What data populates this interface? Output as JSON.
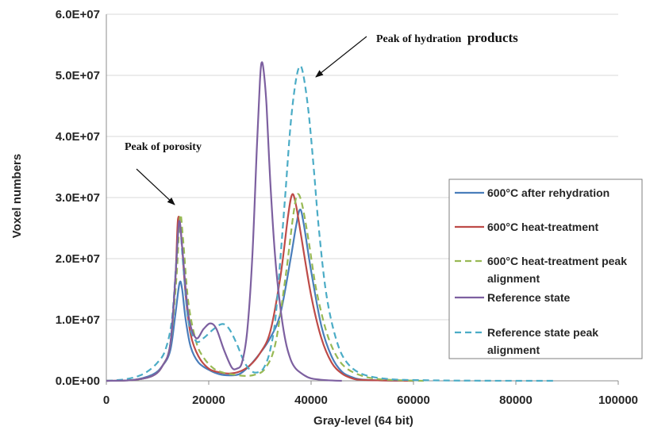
{
  "chart_data": {
    "type": "line",
    "title": "",
    "xlabel": "Gray-level (64 bit)",
    "ylabel": "Voxel numbers",
    "xlim": [
      0,
      100000
    ],
    "ylim": [
      0,
      60000000
    ],
    "x_ticks": [
      0,
      20000,
      40000,
      60000,
      80000,
      100000
    ],
    "x_tick_labels": [
      "0",
      "20000",
      "40000",
      "60000",
      "80000",
      "100000"
    ],
    "y_ticks": [
      0,
      10000000,
      20000000,
      30000000,
      40000000,
      50000000,
      60000000
    ],
    "y_tick_labels": [
      "0.0E+00",
      "1.0E+07",
      "2.0E+07",
      "3.0E+07",
      "4.0E+07",
      "5.0E+07",
      "6.0E+07"
    ],
    "grid": "horizontal",
    "legend_position": "right",
    "series": [
      {
        "name": "600°C after rehydration",
        "color": "#4a7ebb",
        "dash": "solid",
        "points": [
          [
            0,
            0
          ],
          [
            5000,
            100000
          ],
          [
            9000,
            1000000
          ],
          [
            11000,
            2500000
          ],
          [
            12500,
            5000000
          ],
          [
            13500,
            11000000
          ],
          [
            14300,
            16000000
          ],
          [
            14800,
            15000000
          ],
          [
            15500,
            10000000
          ],
          [
            16500,
            5500000
          ],
          [
            18000,
            3000000
          ],
          [
            20000,
            1800000
          ],
          [
            22000,
            1100000
          ],
          [
            24000,
            900000
          ],
          [
            26000,
            1100000
          ],
          [
            28000,
            2500000
          ],
          [
            30000,
            4500000
          ],
          [
            32000,
            7000000
          ],
          [
            34000,
            11000000
          ],
          [
            36000,
            20000000
          ],
          [
            37000,
            25000000
          ],
          [
            37800,
            28000000
          ],
          [
            38500,
            26000000
          ],
          [
            40000,
            18000000
          ],
          [
            42000,
            9000000
          ],
          [
            44000,
            4000000
          ],
          [
            46000,
            1500000
          ],
          [
            48000,
            600000
          ],
          [
            50000,
            200000
          ],
          [
            55000,
            50000
          ],
          [
            60000,
            0
          ]
        ]
      },
      {
        "name": "600°C heat-treatment",
        "color": "#be4b48",
        "dash": "solid",
        "points": [
          [
            0,
            0
          ],
          [
            5000,
            100000
          ],
          [
            9000,
            800000
          ],
          [
            11000,
            2500000
          ],
          [
            12500,
            6000000
          ],
          [
            13500,
            17000000
          ],
          [
            14000,
            26500000
          ],
          [
            14600,
            24000000
          ],
          [
            15500,
            14000000
          ],
          [
            16500,
            7500000
          ],
          [
            18000,
            4000000
          ],
          [
            20000,
            2000000
          ],
          [
            22000,
            1400000
          ],
          [
            24000,
            1200000
          ],
          [
            26000,
            1500000
          ],
          [
            28000,
            2500000
          ],
          [
            30000,
            4500000
          ],
          [
            32000,
            8000000
          ],
          [
            34000,
            17000000
          ],
          [
            35500,
            27000000
          ],
          [
            36300,
            30500000
          ],
          [
            37000,
            29000000
          ],
          [
            38000,
            24000000
          ],
          [
            40000,
            14000000
          ],
          [
            42000,
            7000000
          ],
          [
            44000,
            3000000
          ],
          [
            46000,
            1200000
          ],
          [
            48000,
            400000
          ],
          [
            50000,
            150000
          ],
          [
            55000,
            50000
          ],
          [
            60000,
            0
          ]
        ]
      },
      {
        "name": "600°C heat-treatment peak alignment",
        "color": "#98b954",
        "dash": "dashed",
        "points": [
          [
            0,
            0
          ],
          [
            5000,
            100000
          ],
          [
            9000,
            800000
          ],
          [
            11000,
            2500000
          ],
          [
            12500,
            6000000
          ],
          [
            13700,
            17000000
          ],
          [
            14400,
            27000000
          ],
          [
            15000,
            23000000
          ],
          [
            16000,
            13000000
          ],
          [
            17500,
            6500000
          ],
          [
            19000,
            3800000
          ],
          [
            21000,
            2000000
          ],
          [
            23000,
            1300000
          ],
          [
            25000,
            1000000
          ],
          [
            27000,
            800000
          ],
          [
            29000,
            1000000
          ],
          [
            31000,
            2000000
          ],
          [
            33000,
            6000000
          ],
          [
            35000,
            17000000
          ],
          [
            36500,
            27000000
          ],
          [
            37300,
            30500000
          ],
          [
            38200,
            29000000
          ],
          [
            39500,
            23000000
          ],
          [
            41000,
            15000000
          ],
          [
            43000,
            8000000
          ],
          [
            45000,
            4000000
          ],
          [
            47000,
            2000000
          ],
          [
            50000,
            800000
          ],
          [
            53000,
            300000
          ],
          [
            57000,
            100000
          ],
          [
            62000,
            0
          ]
        ]
      },
      {
        "name": "Reference state",
        "color": "#7d60a0",
        "dash": "solid",
        "points": [
          [
            0,
            0
          ],
          [
            5000,
            100000
          ],
          [
            9000,
            800000
          ],
          [
            11000,
            2500000
          ],
          [
            12500,
            6000000
          ],
          [
            13500,
            17000000
          ],
          [
            14200,
            26000000
          ],
          [
            14800,
            22000000
          ],
          [
            16000,
            11000000
          ],
          [
            17500,
            7000000
          ],
          [
            19000,
            8500000
          ],
          [
            20300,
            9400000
          ],
          [
            21500,
            8500000
          ],
          [
            23000,
            5000000
          ],
          [
            24500,
            2200000
          ],
          [
            25500,
            2000000
          ],
          [
            26500,
            3000000
          ],
          [
            27500,
            8000000
          ],
          [
            28500,
            20000000
          ],
          [
            29400,
            38000000
          ],
          [
            30000,
            49000000
          ],
          [
            30300,
            52000000
          ],
          [
            30700,
            51000000
          ],
          [
            31300,
            45000000
          ],
          [
            32000,
            33000000
          ],
          [
            33000,
            20000000
          ],
          [
            34000,
            12000000
          ],
          [
            35000,
            6500000
          ],
          [
            36000,
            3500000
          ],
          [
            37000,
            2000000
          ],
          [
            38500,
            1000000
          ],
          [
            40000,
            400000
          ],
          [
            43000,
            100000
          ],
          [
            46000,
            0
          ]
        ]
      },
      {
        "name": "Reference state peak alignment",
        "color": "#4bacc6",
        "dash": "dashed",
        "points": [
          [
            0,
            0
          ],
          [
            2000,
            100000
          ],
          [
            4000,
            300000
          ],
          [
            6000,
            700000
          ],
          [
            8000,
            1500000
          ],
          [
            10000,
            3000000
          ],
          [
            11500,
            5000000
          ],
          [
            12800,
            10000000
          ],
          [
            13700,
            20000000
          ],
          [
            14300,
            26000000
          ],
          [
            15000,
            19000000
          ],
          [
            16000,
            10000000
          ],
          [
            17500,
            6500000
          ],
          [
            19000,
            7000000
          ],
          [
            21000,
            8500000
          ],
          [
            22700,
            9300000
          ],
          [
            24000,
            8500000
          ],
          [
            25500,
            6000000
          ],
          [
            27000,
            3000000
          ],
          [
            28500,
            1500000
          ],
          [
            30000,
            1500000
          ],
          [
            31000,
            2500000
          ],
          [
            32000,
            5000000
          ],
          [
            33000,
            10000000
          ],
          [
            34000,
            20000000
          ],
          [
            35000,
            31000000
          ],
          [
            36000,
            42000000
          ],
          [
            37000,
            49000000
          ],
          [
            37800,
            51500000
          ],
          [
            38500,
            50000000
          ],
          [
            39500,
            44000000
          ],
          [
            40500,
            35000000
          ],
          [
            41500,
            25000000
          ],
          [
            43000,
            14000000
          ],
          [
            45000,
            6500000
          ],
          [
            47000,
            3000000
          ],
          [
            50000,
            1100000
          ],
          [
            55000,
            300000
          ],
          [
            62000,
            100000
          ],
          [
            72000,
            20000
          ],
          [
            88000,
            0
          ]
        ]
      }
    ],
    "annotations": [
      {
        "text": "Peak of hydration",
        "text2": "products",
        "arrow_to": [
          37800,
          51800000
        ]
      },
      {
        "text": "Peak of porosity",
        "arrow_to": [
          14400,
          27000000
        ]
      }
    ]
  }
}
